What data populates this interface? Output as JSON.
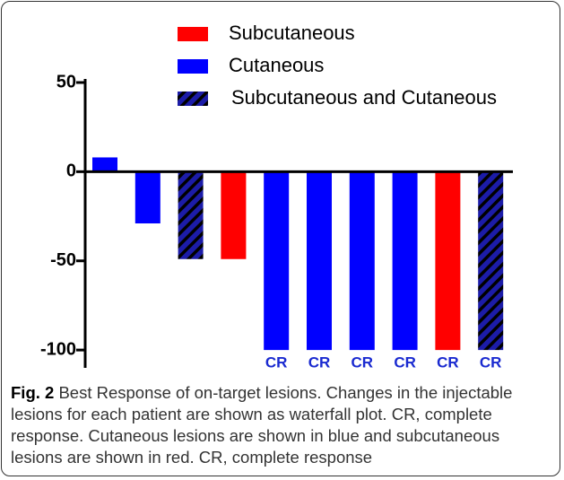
{
  "chart_data": {
    "type": "bar",
    "categories": [
      null,
      null,
      null,
      null,
      null,
      null,
      null,
      null,
      null,
      null
    ],
    "series": [
      {
        "name": "Subcutaneous",
        "color": "#ff0000",
        "hatch": false,
        "values": [
          null,
          null,
          null,
          -49,
          null,
          null,
          null,
          null,
          -100,
          null
        ]
      },
      {
        "name": "Cutaneous",
        "color": "#0000ff",
        "hatch": false,
        "values": [
          8,
          -29,
          null,
          null,
          -100,
          -100,
          -100,
          -100,
          null,
          null
        ]
      },
      {
        "name": "Subcutaneous and Cutaneous",
        "color": "#1c1ca8",
        "hatch": true,
        "values": [
          null,
          null,
          -49,
          null,
          null,
          null,
          null,
          null,
          null,
          -100
        ]
      }
    ],
    "bar_labels": [
      null,
      null,
      null,
      null,
      "CR",
      "CR",
      "CR",
      "CR",
      "CR",
      "CR"
    ],
    "ylim": [
      -110,
      52
    ],
    "yticks": [
      50,
      0,
      -50,
      -100
    ],
    "caption_label": "Fig. 2",
    "caption": "Best Response of on-target lesions. Changes in the injectable lesions for each patient are shown as waterfall plot. CR, complete response. Cutaneous lesions are shown in blue and subcutaneous lesions are shown in red. CR, complete response"
  }
}
